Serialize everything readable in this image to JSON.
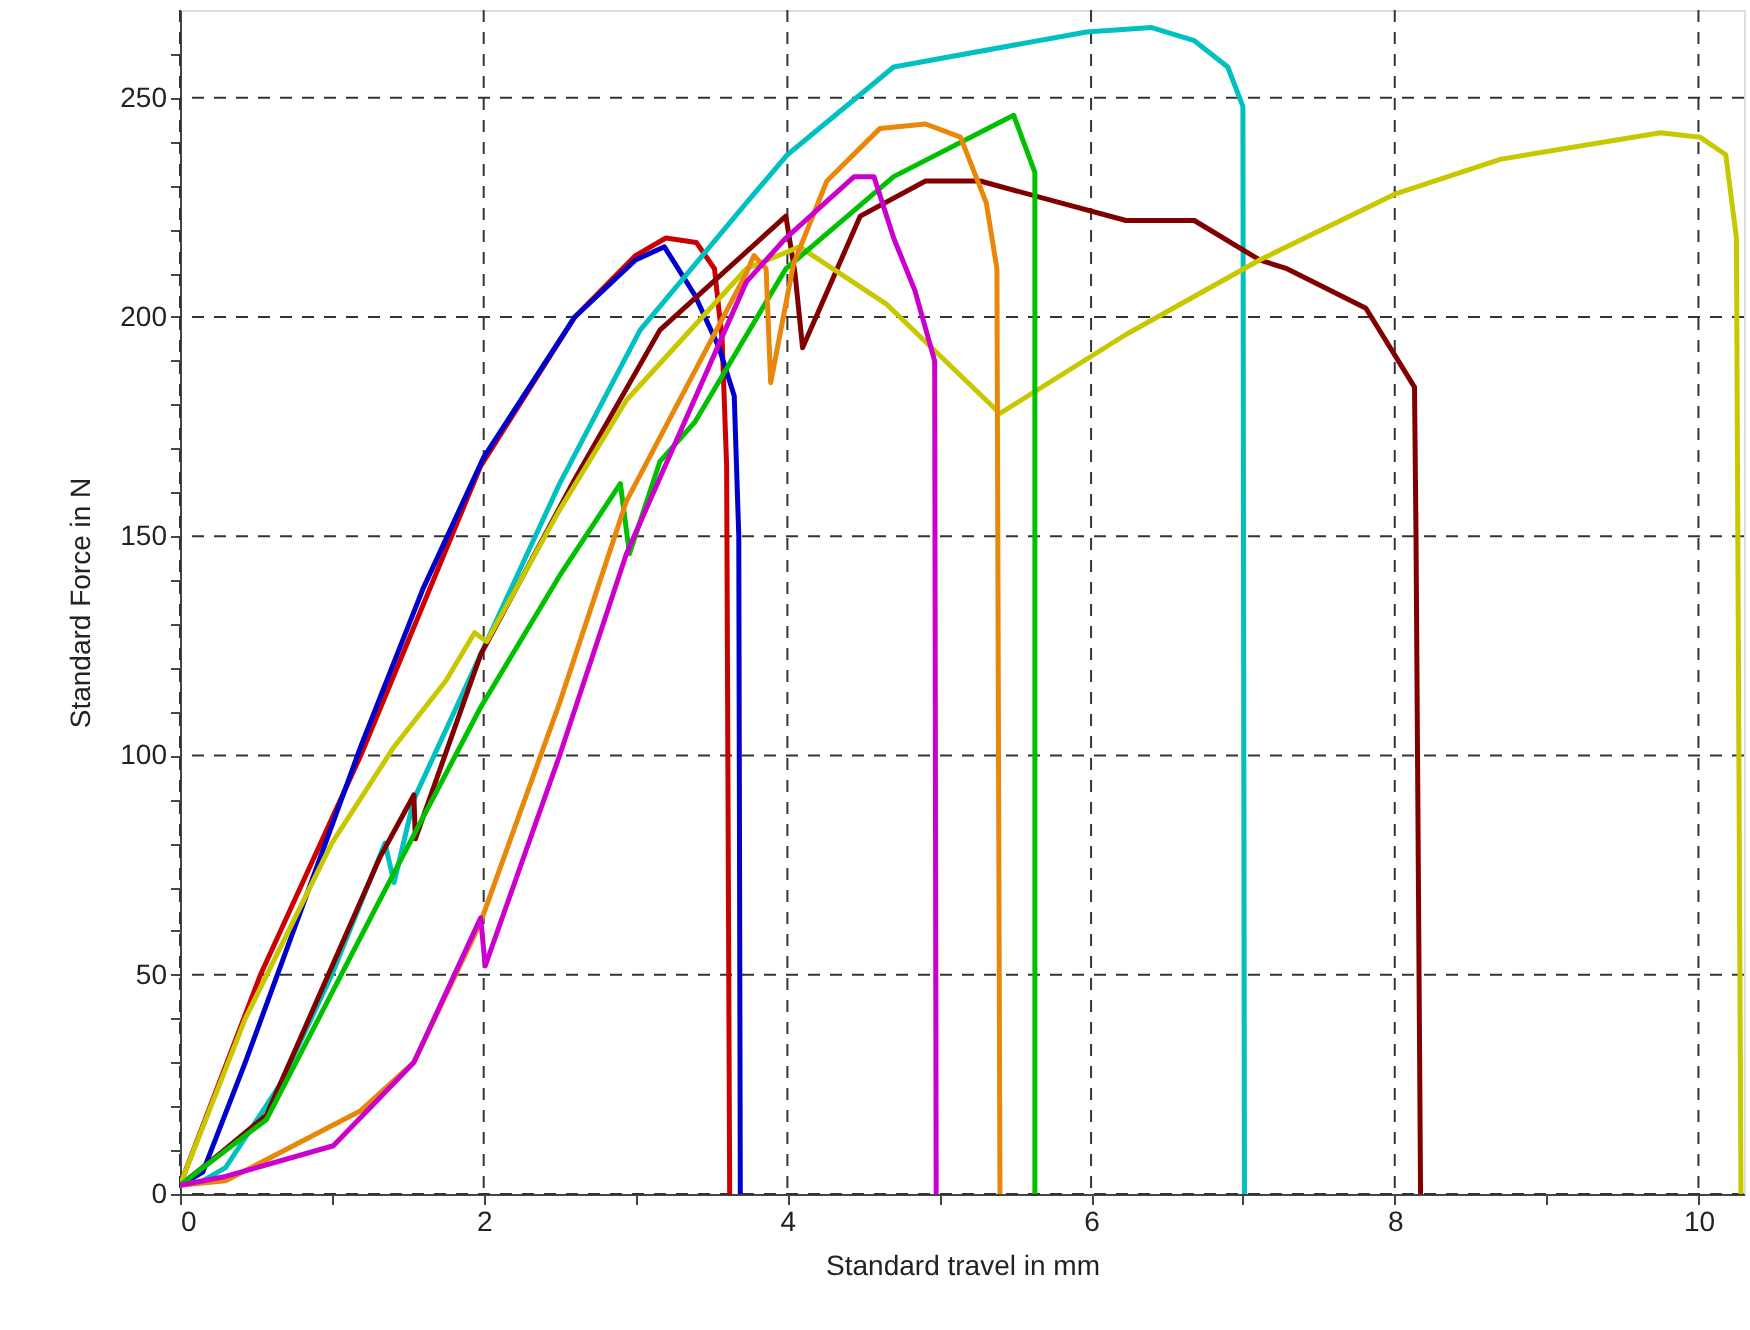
{
  "chart_data": {
    "type": "line",
    "xlabel": "Standard travel in mm",
    "ylabel": "Standard Force in N",
    "xlim": [
      0,
      10.3
    ],
    "ylim": [
      0,
      270
    ],
    "xticks": [
      0,
      {
        "value": 1,
        "label": null
      },
      2,
      {
        "value": 3,
        "label": null
      },
      4,
      {
        "value": 5,
        "label": null
      },
      6,
      {
        "value": 7,
        "label": null
      },
      8,
      {
        "value": 9,
        "label": null
      },
      10
    ],
    "yticks": [
      0,
      {
        "value": 10,
        "label": null
      },
      {
        "value": 20,
        "label": null
      },
      {
        "value": 30,
        "label": null
      },
      {
        "value": 40,
        "label": null
      },
      50,
      {
        "value": 60,
        "label": null
      },
      {
        "value": 70,
        "label": null
      },
      {
        "value": 80,
        "label": null
      },
      {
        "value": 90,
        "label": null
      },
      100,
      {
        "value": 110,
        "label": null
      },
      {
        "value": 120,
        "label": null
      },
      {
        "value": 130,
        "label": null
      },
      {
        "value": 140,
        "label": null
      },
      150,
      {
        "value": 160,
        "label": null
      },
      {
        "value": 170,
        "label": null
      },
      {
        "value": 180,
        "label": null
      },
      {
        "value": 190,
        "label": null
      },
      200,
      {
        "value": 210,
        "label": null
      },
      {
        "value": 220,
        "label": null
      },
      {
        "value": 230,
        "label": null
      },
      {
        "value": 240,
        "label": null
      },
      250,
      {
        "value": 260,
        "label": null
      }
    ],
    "grid": true,
    "marker": "none",
    "line_style": "solid",
    "series": [
      {
        "color": "#cc0000",
        "x": [
          0,
          0.53,
          1.19,
          1.98,
          2.6,
          3.0,
          3.2,
          3.4,
          3.52,
          3.57,
          3.6,
          3.62
        ],
        "values": [
          2,
          50,
          100,
          166,
          200,
          214,
          218,
          217,
          211,
          195,
          166,
          0
        ]
      },
      {
        "color": "#0000cc",
        "x": [
          0,
          0.15,
          0.43,
          0.8,
          1.19,
          1.6,
          2.0,
          2.6,
          3.0,
          3.19,
          3.39,
          3.55,
          3.65,
          3.68,
          3.69
        ],
        "values": [
          2,
          5,
          30,
          65,
          102,
          138,
          168,
          200,
          213,
          216,
          205,
          193,
          182,
          150,
          0
        ]
      },
      {
        "color": "#00c0c0",
        "x": [
          0,
          0.15,
          0.3,
          0.66,
          1.0,
          1.35,
          1.41,
          1.54,
          1.98,
          2.5,
          3.03,
          3.73,
          4.0,
          4.7,
          5.97,
          6.4,
          6.68,
          6.9,
          7.0,
          7.01
        ],
        "values": [
          2,
          3,
          6,
          25,
          50,
          80,
          71,
          90,
          123,
          162,
          197,
          226,
          237,
          257,
          265,
          266,
          263,
          257,
          248,
          0
        ]
      },
      {
        "color": "#800000",
        "x": [
          0,
          0.22,
          0.57,
          1.32,
          1.54,
          1.55,
          1.98,
          2.6,
          3.16,
          3.99,
          4.05,
          4.1,
          4.48,
          4.91,
          5.27,
          5.8,
          6.23,
          6.68,
          7.11,
          7.29,
          7.81,
          8.13,
          8.14,
          8.17
        ],
        "values": [
          2,
          8,
          18,
          77,
          91,
          81,
          123,
          163,
          197,
          223,
          210,
          193,
          223,
          231,
          231,
          226,
          222,
          222,
          213,
          211,
          202,
          184,
          150,
          0
        ]
      },
      {
        "color": "#c8c800",
        "x": [
          0,
          0.43,
          1.0,
          1.41,
          1.75,
          1.94,
          2.02,
          2.5,
          2.94,
          3.73,
          4.08,
          4.65,
          5.4,
          6.23,
          7.11,
          8.0,
          8.7,
          9.75,
          10.01,
          10.18,
          10.25,
          10.28
        ],
        "values": [
          2,
          40,
          80,
          102,
          117,
          128,
          126,
          156,
          181,
          211,
          216,
          203,
          178,
          196,
          213,
          228,
          236,
          242,
          241,
          237,
          218,
          0
        ]
      },
      {
        "color": "#00c000",
        "x": [
          0,
          0.57,
          1.3,
          1.98,
          2.5,
          2.9,
          2.96,
          3.16,
          3.39,
          3.99,
          4.7,
          5.49,
          5.63,
          5.63
        ],
        "values": [
          2,
          17,
          66,
          111,
          141,
          162,
          146,
          167,
          176,
          211,
          232,
          246,
          233,
          0
        ]
      },
      {
        "color": "#e8870a",
        "x": [
          0,
          0.3,
          1.19,
          1.54,
          1.98,
          2.5,
          2.94,
          3.73,
          3.78,
          3.86,
          3.89,
          4.04,
          4.26,
          4.61,
          4.91,
          5.14,
          5.31,
          5.38,
          5.4
        ],
        "values": [
          2,
          3,
          19,
          30,
          62,
          112,
          158,
          210,
          214,
          211,
          185,
          212,
          231,
          243,
          244,
          241,
          226,
          211,
          0
        ]
      },
      {
        "color": "#cc00cc",
        "x": [
          0,
          0.3,
          1.01,
          1.54,
          1.98,
          2.01,
          2.5,
          2.94,
          3.73,
          3.99,
          4.44,
          4.57,
          4.7,
          4.84,
          4.97,
          4.98
        ],
        "values": [
          2,
          4,
          11,
          30,
          63,
          52,
          100,
          146,
          208,
          218,
          232,
          232,
          218,
          206,
          190,
          0
        ]
      }
    ]
  }
}
